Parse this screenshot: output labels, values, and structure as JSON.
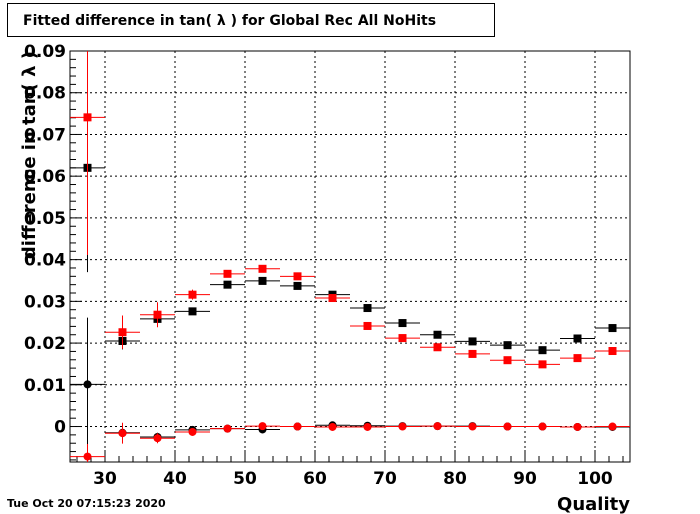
{
  "title": "Fitted difference in tan( λ ) for Global Rec All NoHits",
  "timestamp": "Tue Oct 20 07:15:23 2020",
  "chart_data": {
    "type": "scatter",
    "title": "Fitted difference in tan( λ ) for Global Rec All NoHits",
    "xlabel": "Quality",
    "ylabel": "difference in tan( λ )",
    "xlim": [
      25,
      105
    ],
    "ylim": [
      -0.0085,
      0.09
    ],
    "x_ticks": [
      30,
      40,
      50,
      60,
      70,
      80,
      90,
      100
    ],
    "x_tick_labels": [
      "30",
      "40",
      "50",
      "60",
      "70",
      "80",
      "90",
      "100"
    ],
    "y_ticks": [
      0,
      0.01,
      0.02,
      0.03,
      0.04,
      0.05,
      0.06,
      0.07,
      0.08,
      0.09
    ],
    "y_tick_labels": [
      "0",
      "0.01",
      "0.02",
      "0.03",
      "0.04",
      "0.05",
      "0.06",
      "0.07",
      "0.08",
      "0.09"
    ],
    "grid": true,
    "x_bin_halfwidth": 2.5,
    "series": [
      {
        "marker": "square",
        "color": "#000000",
        "points": [
          [
            27.5,
            0.062,
            0.025
          ],
          [
            32.5,
            0.0205,
            0.002
          ],
          [
            37.5,
            0.0258,
            0.0015
          ],
          [
            42.5,
            0.0276,
            0.0008
          ],
          [
            47.5,
            0.034,
            0.0006
          ],
          [
            52.5,
            0.0349,
            0.0006
          ],
          [
            57.5,
            0.0337,
            0.0005
          ],
          [
            62.5,
            0.0316,
            0.0005
          ],
          [
            67.5,
            0.0284,
            0.0005
          ],
          [
            72.5,
            0.0248,
            0.0004
          ],
          [
            77.5,
            0.022,
            0.0004
          ],
          [
            82.5,
            0.0204,
            0.0004
          ],
          [
            87.5,
            0.0195,
            0.0004
          ],
          [
            92.5,
            0.0183,
            0.0004
          ],
          [
            97.5,
            0.0211,
            0.0004
          ],
          [
            102.5,
            0.0236,
            0.0004
          ]
        ]
      },
      {
        "marker": "square",
        "color": "#ff0000",
        "points": [
          [
            27.5,
            0.0741,
            0.033
          ],
          [
            32.5,
            0.0226,
            0.004
          ],
          [
            37.5,
            0.0268,
            0.003
          ],
          [
            42.5,
            0.0316,
            0.0012
          ],
          [
            47.5,
            0.0366,
            0.0008
          ],
          [
            52.5,
            0.0378,
            0.0007
          ],
          [
            57.5,
            0.036,
            0.0006
          ],
          [
            62.5,
            0.0308,
            0.0006
          ],
          [
            67.5,
            0.0241,
            0.0005
          ],
          [
            72.5,
            0.0212,
            0.0005
          ],
          [
            77.5,
            0.019,
            0.0004
          ],
          [
            82.5,
            0.0174,
            0.0004
          ],
          [
            87.5,
            0.0159,
            0.0004
          ],
          [
            92.5,
            0.0149,
            0.0004
          ],
          [
            97.5,
            0.0164,
            0.0004
          ],
          [
            102.5,
            0.0181,
            0.0004
          ]
        ]
      },
      {
        "marker": "circle",
        "color": "#000000",
        "points": [
          [
            27.5,
            0.0101,
            0.016
          ],
          [
            32.5,
            -0.0015,
            0.0015
          ],
          [
            37.5,
            -0.0025,
            0.001
          ],
          [
            42.5,
            -0.0008,
            0.0008
          ],
          [
            47.5,
            -0.0005,
            0.0005
          ],
          [
            52.5,
            -0.0007,
            0.0004
          ],
          [
            57.5,
            0.0,
            0.0003
          ],
          [
            62.5,
            0.0003,
            0.0003
          ],
          [
            67.5,
            0.0002,
            0.0003
          ],
          [
            72.5,
            0.0001,
            0.0003
          ],
          [
            77.5,
            0.0001,
            0.0002
          ],
          [
            82.5,
            0.0001,
            0.0002
          ],
          [
            87.5,
            0.0,
            0.0002
          ],
          [
            92.5,
            0.0,
            0.0002
          ],
          [
            97.5,
            -0.0001,
            0.0002
          ],
          [
            102.5,
            -0.0001,
            0.0002
          ]
        ]
      },
      {
        "marker": "circle",
        "color": "#ff0000",
        "points": [
          [
            27.5,
            -0.0072,
            0.003
          ],
          [
            32.5,
            -0.0016,
            0.0025
          ],
          [
            37.5,
            -0.0028,
            0.0012
          ],
          [
            42.5,
            -0.0013,
            0.0008
          ],
          [
            47.5,
            -0.0005,
            0.0006
          ],
          [
            52.5,
            0.0001,
            0.0005
          ],
          [
            57.5,
            0.0,
            0.0004
          ],
          [
            62.5,
            -0.0001,
            0.0004
          ],
          [
            67.5,
            -0.0001,
            0.0004
          ],
          [
            72.5,
            0.0,
            0.0003
          ],
          [
            77.5,
            0.0001,
            0.0003
          ],
          [
            82.5,
            0.0,
            0.0003
          ],
          [
            87.5,
            0.0,
            0.0003
          ],
          [
            92.5,
            0.0,
            0.0003
          ],
          [
            97.5,
            -0.0001,
            0.0003
          ],
          [
            102.5,
            0.0,
            0.0003
          ]
        ]
      }
    ]
  }
}
